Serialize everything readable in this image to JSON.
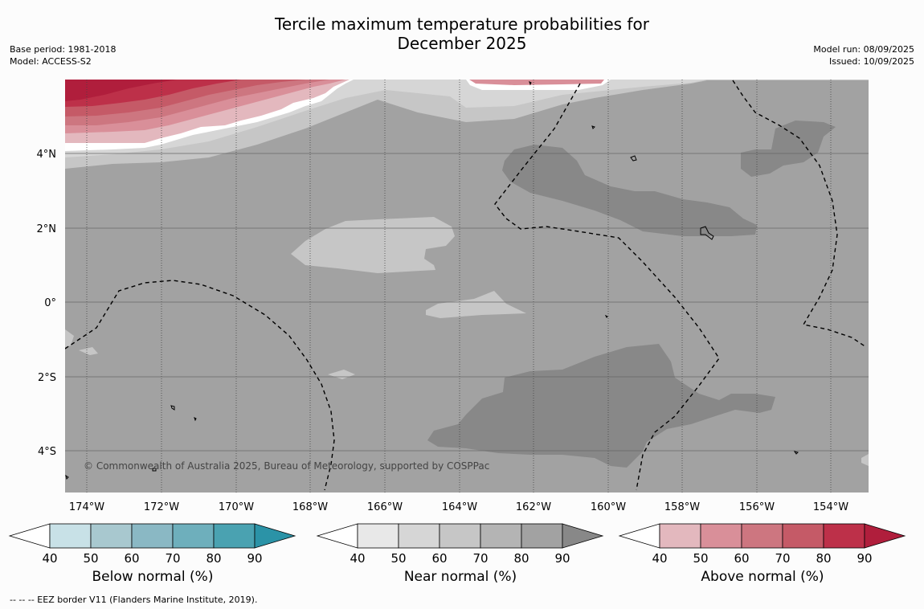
{
  "header": {
    "title_line1": "Tercile maximum temperature probabilities for",
    "title_line2": "December 2025",
    "base_period": "Base period: 1981-2018",
    "model": "Model: ACCESS-S2",
    "model_run": "Model run: 08/09/2025",
    "issued": "Issued: 10/09/2025"
  },
  "map": {
    "lon_ticks": [
      "174°W",
      "172°W",
      "170°W",
      "168°W",
      "166°W",
      "164°W",
      "162°W",
      "160°W",
      "158°W",
      "156°W",
      "154°W"
    ],
    "lat_ticks": [
      "4°N",
      "2°N",
      "0°",
      "2°S",
      "4°S"
    ],
    "copyright": "© Commonwealth of Australia 2025, Bureau of Meteorology, supported by COSPPac",
    "background_category": "Near normal 80-90%"
  },
  "colorbars": [
    {
      "label": "Below normal (%)",
      "ticks": [
        "40",
        "50",
        "60",
        "70",
        "80",
        "90"
      ],
      "colors": [
        "#ffffff",
        "#c8e1e7",
        "#a8c8cf",
        "#8ab8c4",
        "#6eafbc",
        "#4aa2b1",
        "#2b93a7"
      ]
    },
    {
      "label": "Near normal (%)",
      "ticks": [
        "40",
        "50",
        "60",
        "70",
        "80",
        "90"
      ],
      "colors": [
        "#ffffff",
        "#e8e8e8",
        "#d6d6d6",
        "#c6c6c6",
        "#b4b4b4",
        "#a2a2a2",
        "#888888"
      ]
    },
    {
      "label": "Above normal (%)",
      "ticks": [
        "40",
        "50",
        "60",
        "70",
        "80",
        "90"
      ],
      "colors": [
        "#ffffff",
        "#e3b8be",
        "#d98f99",
        "#cd7680",
        "#c55a67",
        "#bd3049",
        "#b01e3c"
      ]
    }
  ],
  "footnote": "--  --  -- EEZ border V11 (Flanders Marine Institute, 2019)."
}
